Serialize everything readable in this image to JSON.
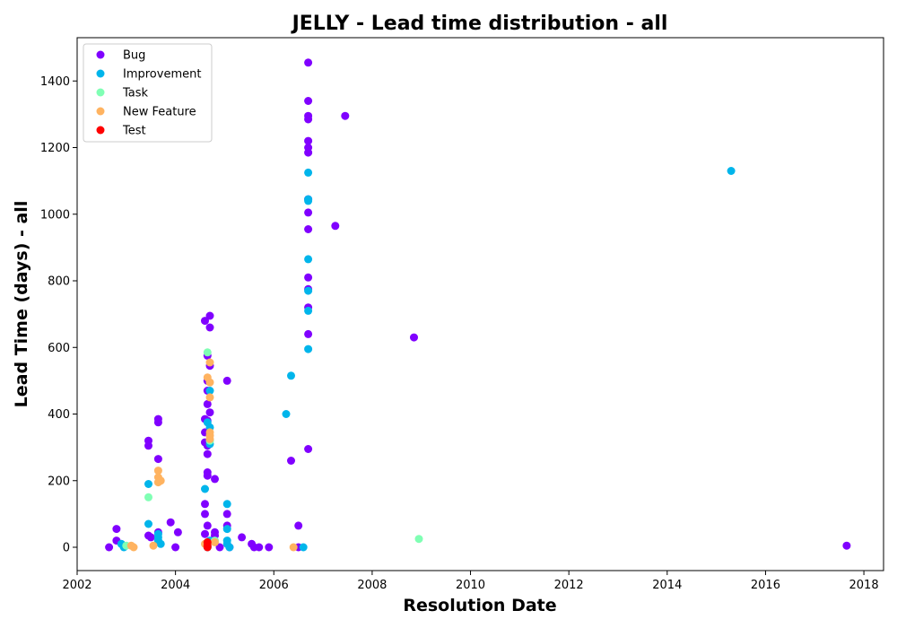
{
  "chart_data": {
    "type": "scatter",
    "title": "JELLY - Lead time distribution - all",
    "xlabel": "Resolution Date",
    "ylabel": "Lead Time (days) - all",
    "xlim": [
      2002.0,
      2018.4
    ],
    "ylim": [
      -70,
      1530
    ],
    "x_ticks": [
      "2002",
      "2004",
      "2006",
      "2008",
      "2010",
      "2012",
      "2014",
      "2016",
      "2018"
    ],
    "y_ticks": [
      "0",
      "200",
      "400",
      "600",
      "800",
      "1000",
      "1200",
      "1400"
    ],
    "legend_position": "top-left",
    "grid": false,
    "series": [
      {
        "name": "Bug",
        "color": "#8000ff",
        "points": [
          [
            2002.65,
            0
          ],
          [
            2002.8,
            55
          ],
          [
            2002.8,
            20
          ],
          [
            2003.45,
            320
          ],
          [
            2003.45,
            305
          ],
          [
            2003.45,
            35
          ],
          [
            2003.5,
            30
          ],
          [
            2003.65,
            385
          ],
          [
            2003.65,
            375
          ],
          [
            2003.65,
            265
          ],
          [
            2003.65,
            45
          ],
          [
            2003.9,
            75
          ],
          [
            2004.0,
            0
          ],
          [
            2004.05,
            45
          ],
          [
            2004.6,
            680
          ],
          [
            2004.7,
            695
          ],
          [
            2004.7,
            660
          ],
          [
            2004.65,
            575
          ],
          [
            2004.7,
            545
          ],
          [
            2004.65,
            500
          ],
          [
            2004.65,
            470
          ],
          [
            2004.65,
            430
          ],
          [
            2004.7,
            405
          ],
          [
            2004.6,
            385
          ],
          [
            2004.65,
            380
          ],
          [
            2004.6,
            345
          ],
          [
            2004.6,
            315
          ],
          [
            2004.65,
            305
          ],
          [
            2004.65,
            280
          ],
          [
            2004.65,
            225
          ],
          [
            2004.65,
            215
          ],
          [
            2004.8,
            205
          ],
          [
            2004.6,
            130
          ],
          [
            2004.6,
            100
          ],
          [
            2004.65,
            65
          ],
          [
            2004.6,
            40
          ],
          [
            2004.8,
            45
          ],
          [
            2004.8,
            35
          ],
          [
            2004.9,
            0
          ],
          [
            2005.05,
            500
          ],
          [
            2005.05,
            100
          ],
          [
            2005.05,
            65
          ],
          [
            2005.1,
            0
          ],
          [
            2005.35,
            30
          ],
          [
            2005.55,
            10
          ],
          [
            2005.6,
            0
          ],
          [
            2005.7,
            0
          ],
          [
            2005.9,
            0
          ],
          [
            2006.35,
            260
          ],
          [
            2006.5,
            65
          ],
          [
            2006.5,
            0
          ],
          [
            2006.7,
            1455
          ],
          [
            2006.7,
            1340
          ],
          [
            2006.7,
            1295
          ],
          [
            2006.7,
            1285
          ],
          [
            2006.7,
            1220
          ],
          [
            2006.7,
            1200
          ],
          [
            2006.7,
            1185
          ],
          [
            2006.7,
            1045
          ],
          [
            2006.7,
            1005
          ],
          [
            2006.7,
            955
          ],
          [
            2006.7,
            810
          ],
          [
            2006.7,
            775
          ],
          [
            2006.7,
            720
          ],
          [
            2006.7,
            640
          ],
          [
            2006.7,
            295
          ],
          [
            2007.25,
            965
          ],
          [
            2007.45,
            1295
          ],
          [
            2008.85,
            630
          ],
          [
            2017.65,
            5
          ]
        ]
      },
      {
        "name": "Improvement",
        "color": "#00b5eb",
        "points": [
          [
            2002.9,
            10
          ],
          [
            2002.95,
            0
          ],
          [
            2003.45,
            190
          ],
          [
            2003.45,
            70
          ],
          [
            2003.65,
            40
          ],
          [
            2003.65,
            30
          ],
          [
            2003.65,
            20
          ],
          [
            2003.7,
            10
          ],
          [
            2004.6,
            175
          ],
          [
            2004.7,
            470
          ],
          [
            2004.65,
            375
          ],
          [
            2004.7,
            360
          ],
          [
            2004.7,
            310
          ],
          [
            2004.7,
            20
          ],
          [
            2004.65,
            0
          ],
          [
            2005.05,
            130
          ],
          [
            2005.05,
            55
          ],
          [
            2005.05,
            20
          ],
          [
            2005.05,
            10
          ],
          [
            2005.1,
            0
          ],
          [
            2006.25,
            400
          ],
          [
            2006.35,
            515
          ],
          [
            2006.6,
            0
          ],
          [
            2006.7,
            1125
          ],
          [
            2006.7,
            1045
          ],
          [
            2006.7,
            1040
          ],
          [
            2006.7,
            865
          ],
          [
            2006.7,
            770
          ],
          [
            2006.7,
            710
          ],
          [
            2006.7,
            595
          ],
          [
            2015.3,
            1130
          ]
        ]
      },
      {
        "name": "Task",
        "color": "#80ffb4",
        "points": [
          [
            2003.0,
            5
          ],
          [
            2003.45,
            150
          ],
          [
            2004.65,
            585
          ],
          [
            2004.7,
            320
          ],
          [
            2004.8,
            20
          ],
          [
            2008.95,
            25
          ]
        ]
      },
      {
        "name": "New Feature",
        "color": "#ffb360",
        "points": [
          [
            2003.1,
            5
          ],
          [
            2003.15,
            0
          ],
          [
            2003.55,
            5
          ],
          [
            2003.65,
            230
          ],
          [
            2003.65,
            210
          ],
          [
            2003.65,
            195
          ],
          [
            2003.7,
            200
          ],
          [
            2004.7,
            555
          ],
          [
            2004.65,
            510
          ],
          [
            2004.7,
            495
          ],
          [
            2004.7,
            450
          ],
          [
            2004.7,
            345
          ],
          [
            2004.7,
            335
          ],
          [
            2004.7,
            325
          ],
          [
            2004.6,
            10
          ],
          [
            2004.8,
            15
          ],
          [
            2006.4,
            0
          ]
        ]
      },
      {
        "name": "Test",
        "color": "#ff0000",
        "points": [
          [
            2004.65,
            15
          ],
          [
            2004.65,
            5
          ],
          [
            2004.65,
            0
          ]
        ]
      }
    ]
  }
}
